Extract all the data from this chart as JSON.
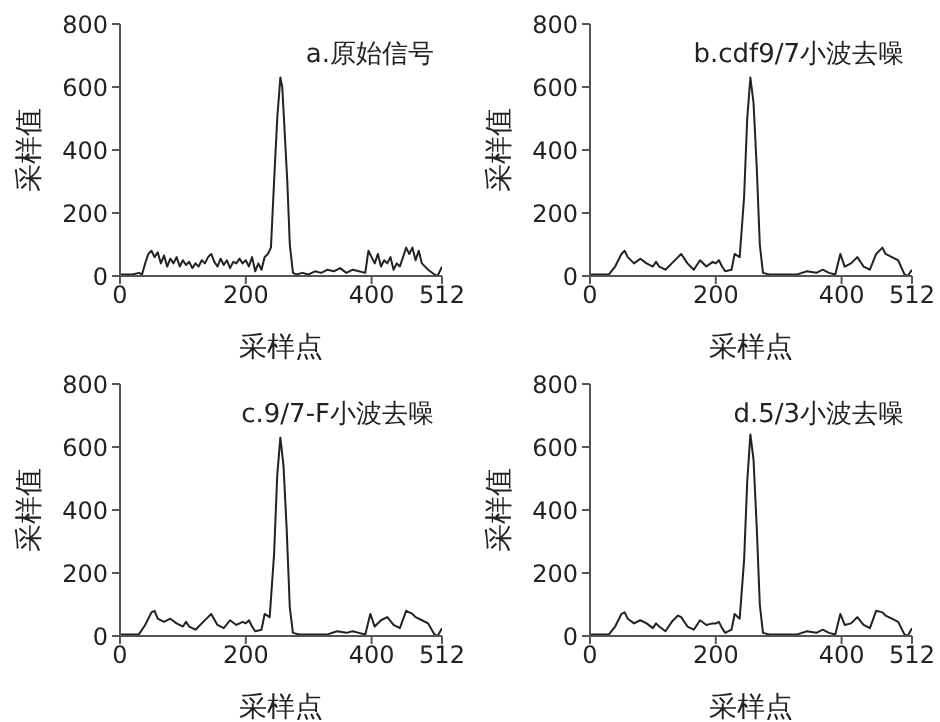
{
  "chart_data": [
    {
      "type": "line",
      "annotations": [
        "a.原始信号"
      ],
      "xlabel": "采样点",
      "ylabel": "采样值",
      "color": "#222222",
      "xlim": [
        0,
        512
      ],
      "xticks": [
        0,
        200,
        400,
        512
      ],
      "ylim": [
        0,
        800
      ],
      "yticks": [
        0,
        200,
        400,
        600,
        800
      ],
      "x": [
        0,
        10,
        20,
        30,
        35,
        40,
        45,
        50,
        55,
        60,
        65,
        70,
        75,
        80,
        85,
        90,
        95,
        100,
        105,
        110,
        115,
        120,
        125,
        130,
        135,
        140,
        145,
        150,
        155,
        160,
        165,
        170,
        175,
        180,
        185,
        190,
        195,
        200,
        205,
        210,
        215,
        220,
        225,
        230,
        235,
        240,
        245,
        250,
        255,
        258,
        262,
        266,
        270,
        275,
        280,
        290,
        300,
        310,
        320,
        330,
        340,
        350,
        360,
        370,
        380,
        390,
        395,
        400,
        405,
        410,
        415,
        420,
        425,
        430,
        435,
        440,
        445,
        450,
        455,
        460,
        465,
        470,
        475,
        480,
        490,
        500,
        505,
        512
      ],
      "values": [
        5,
        5,
        5,
        10,
        5,
        40,
        70,
        80,
        60,
        75,
        40,
        65,
        30,
        55,
        40,
        60,
        30,
        50,
        35,
        45,
        25,
        40,
        30,
        50,
        40,
        60,
        70,
        45,
        30,
        55,
        35,
        50,
        25,
        45,
        40,
        55,
        40,
        50,
        30,
        60,
        15,
        40,
        20,
        60,
        70,
        90,
        300,
        500,
        630,
        600,
        450,
        300,
        100,
        10,
        5,
        10,
        5,
        15,
        10,
        20,
        15,
        25,
        10,
        20,
        15,
        10,
        80,
        60,
        40,
        70,
        30,
        50,
        40,
        60,
        20,
        40,
        30,
        60,
        90,
        70,
        90,
        50,
        80,
        40,
        20,
        5,
        0,
        30
      ]
    },
    {
      "type": "line",
      "annotations": [
        "b.cdf9/7小波去噪"
      ],
      "xlabel": "采样点",
      "ylabel": "采样值",
      "color": "#222222",
      "xlim": [
        0,
        512
      ],
      "xticks": [
        0,
        200,
        400,
        512
      ],
      "ylim": [
        0,
        800
      ],
      "yticks": [
        0,
        200,
        400,
        600,
        800
      ],
      "x": [
        0,
        30,
        40,
        50,
        55,
        60,
        70,
        80,
        90,
        100,
        105,
        110,
        120,
        130,
        140,
        145,
        155,
        165,
        175,
        185,
        195,
        200,
        205,
        210,
        215,
        225,
        230,
        238,
        245,
        250,
        255,
        260,
        265,
        270,
        275,
        285,
        330,
        345,
        360,
        370,
        380,
        390,
        398,
        405,
        415,
        425,
        435,
        445,
        455,
        465,
        470,
        480,
        490,
        500,
        505,
        512
      ],
      "values": [
        5,
        5,
        30,
        70,
        80,
        60,
        40,
        55,
        40,
        30,
        45,
        30,
        20,
        40,
        60,
        70,
        40,
        20,
        50,
        30,
        45,
        40,
        50,
        30,
        15,
        20,
        70,
        60,
        250,
        500,
        630,
        550,
        350,
        100,
        10,
        5,
        5,
        15,
        10,
        20,
        10,
        5,
        70,
        30,
        40,
        60,
        30,
        20,
        70,
        90,
        70,
        60,
        50,
        5,
        0,
        20
      ]
    },
    {
      "type": "line",
      "annotations": [
        "c.9/7-F小波去噪"
      ],
      "xlabel": "采样点",
      "ylabel": "采样值",
      "color": "#222222",
      "xlim": [
        0,
        512
      ],
      "xticks": [
        0,
        200,
        400,
        512
      ],
      "ylim": [
        0,
        800
      ],
      "yticks": [
        0,
        200,
        400,
        600,
        800
      ],
      "x": [
        0,
        30,
        40,
        50,
        55,
        60,
        70,
        80,
        90,
        100,
        105,
        110,
        120,
        130,
        140,
        145,
        155,
        165,
        175,
        185,
        195,
        200,
        205,
        210,
        215,
        225,
        230,
        238,
        245,
        250,
        255,
        260,
        265,
        270,
        275,
        285,
        330,
        345,
        360,
        370,
        380,
        390,
        398,
        405,
        415,
        425,
        435,
        445,
        455,
        465,
        470,
        480,
        490,
        500,
        505,
        512
      ],
      "values": [
        5,
        5,
        35,
        75,
        80,
        55,
        45,
        55,
        40,
        30,
        45,
        30,
        20,
        40,
        60,
        70,
        35,
        25,
        50,
        35,
        45,
        40,
        50,
        30,
        15,
        20,
        70,
        60,
        260,
        510,
        630,
        540,
        340,
        90,
        10,
        5,
        5,
        15,
        10,
        15,
        10,
        5,
        70,
        30,
        50,
        60,
        35,
        25,
        80,
        70,
        60,
        50,
        40,
        5,
        0,
        25
      ]
    },
    {
      "type": "line",
      "annotations": [
        "d.5/3小波去噪"
      ],
      "xlabel": "采样点",
      "ylabel": "采样值",
      "color": "#222222",
      "xlim": [
        0,
        512
      ],
      "xticks": [
        0,
        200,
        400,
        512
      ],
      "ylim": [
        0,
        800
      ],
      "yticks": [
        0,
        200,
        400,
        600,
        800
      ],
      "x": [
        0,
        30,
        40,
        50,
        55,
        60,
        70,
        80,
        90,
        100,
        105,
        110,
        120,
        130,
        140,
        145,
        155,
        165,
        175,
        185,
        195,
        200,
        205,
        210,
        215,
        225,
        230,
        238,
        245,
        250,
        255,
        260,
        265,
        270,
        275,
        285,
        330,
        345,
        360,
        370,
        380,
        390,
        398,
        405,
        415,
        425,
        435,
        445,
        455,
        465,
        470,
        480,
        490,
        500,
        505,
        512
      ],
      "values": [
        5,
        5,
        30,
        70,
        75,
        55,
        40,
        50,
        40,
        25,
        40,
        30,
        15,
        45,
        65,
        60,
        30,
        20,
        50,
        35,
        40,
        40,
        45,
        25,
        10,
        20,
        70,
        55,
        240,
        490,
        640,
        560,
        350,
        100,
        10,
        5,
        5,
        15,
        10,
        20,
        10,
        5,
        70,
        35,
        40,
        60,
        35,
        25,
        80,
        75,
        65,
        55,
        45,
        5,
        0,
        25
      ]
    }
  ]
}
